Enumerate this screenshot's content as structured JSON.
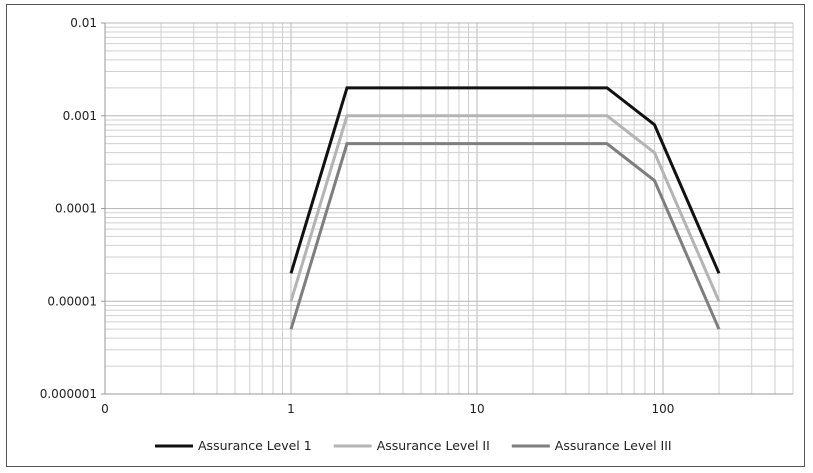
{
  "chart_data": {
    "type": "line",
    "title": "",
    "xlabel": "",
    "ylabel": "",
    "xscale": "log",
    "yscale": "log",
    "grid": true,
    "legend_position": "bottom",
    "xlim": [
      0.1,
      500
    ],
    "ylim": [
      1e-06,
      0.01
    ],
    "x_tick_labels": [
      "0",
      "1",
      "10",
      "100"
    ],
    "y_tick_labels": [
      "0.01",
      "0.001",
      "0.0001",
      "0.00001",
      "0.000001"
    ],
    "series": [
      {
        "name": "Assurance Level 1",
        "color": "#111111",
        "points": [
          [
            1,
            2e-05
          ],
          [
            2,
            0.002
          ],
          [
            50,
            0.002
          ],
          [
            90,
            0.0008
          ],
          [
            200,
            2e-05
          ]
        ]
      },
      {
        "name": "Assurance Level II",
        "color": "#b4b4b4",
        "points": [
          [
            1,
            1e-05
          ],
          [
            2,
            0.001
          ],
          [
            50,
            0.001
          ],
          [
            90,
            0.0004
          ],
          [
            200,
            1e-05
          ]
        ]
      },
      {
        "name": "Assurance Level III",
        "color": "#7e7e7e",
        "points": [
          [
            1,
            5e-06
          ],
          [
            2,
            0.0005
          ],
          [
            50,
            0.0005
          ],
          [
            90,
            0.0002
          ],
          [
            200,
            5e-06
          ]
        ]
      }
    ]
  }
}
